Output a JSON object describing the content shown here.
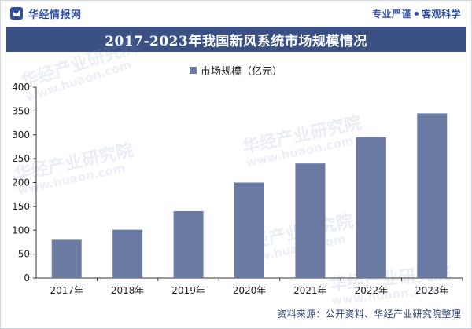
{
  "header": {
    "brand_name": "华经情报网",
    "slogan_left": "专业严谨",
    "slogan_right": "客观科学"
  },
  "title": "2017-2023年我国新风系统市场规模情况",
  "footer": "资料来源：公开资料、华经产业研究院整理",
  "watermark": {
    "cn": "华经产业研究院",
    "en": "www.huaon.com"
  },
  "colors": {
    "bar": "#6a7aa3",
    "title_band": "#3b5184",
    "brand": "#2f4fa3"
  },
  "chart_data": {
    "type": "bar",
    "categories": [
      "2017年",
      "2018年",
      "2019年",
      "2020年",
      "2021年",
      "2022年",
      "2023年"
    ],
    "series": [
      {
        "name": "市场规模（亿元）",
        "values": [
          80,
          101,
          140,
          200,
          240,
          295,
          345
        ]
      }
    ],
    "ylim": [
      0,
      400
    ],
    "yticks": [
      0,
      50,
      100,
      150,
      200,
      250,
      300,
      350,
      400
    ],
    "grid": false,
    "legend": "top-center"
  }
}
